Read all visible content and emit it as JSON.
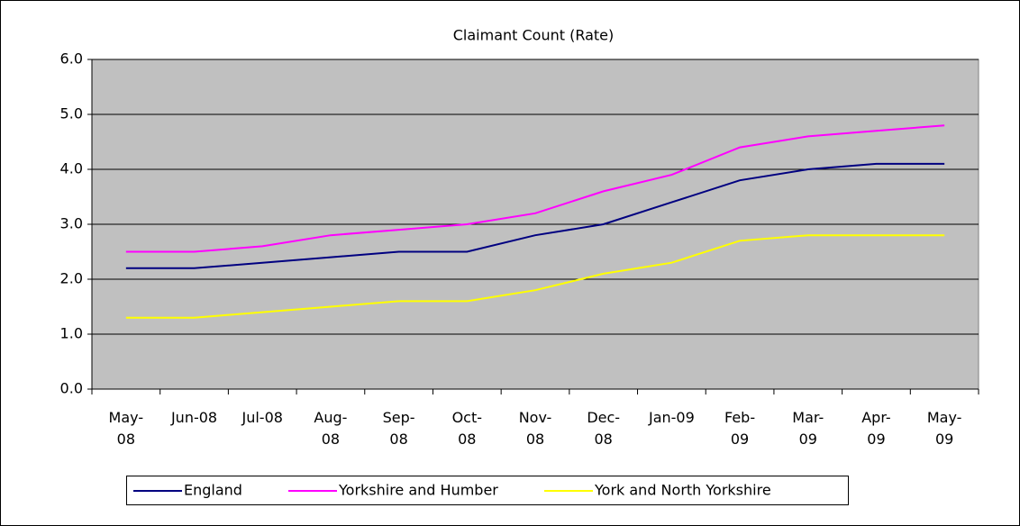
{
  "chart_data": {
    "type": "line",
    "title": "Claimant Count (Rate)",
    "categories": [
      "May-08",
      "Jun-08",
      "Jul-08",
      "Aug-08",
      "Sep-08",
      "Oct-08",
      "Nov-08",
      "Dec-08",
      "Jan-09",
      "Feb-09",
      "Mar-09",
      "Apr-09",
      "May-09"
    ],
    "series": [
      {
        "name": "England",
        "color": "#000080",
        "values": [
          2.2,
          2.2,
          2.3,
          2.4,
          2.5,
          2.5,
          2.8,
          3.0,
          3.4,
          3.8,
          4.0,
          4.1,
          4.1
        ]
      },
      {
        "name": "Yorkshire and Humber",
        "color": "#ff00ff",
        "values": [
          2.5,
          2.5,
          2.6,
          2.8,
          2.9,
          3.0,
          3.2,
          3.6,
          3.9,
          4.4,
          4.6,
          4.7,
          4.8
        ]
      },
      {
        "name": "York and North Yorkshire",
        "color": "#ffff00",
        "values": [
          1.3,
          1.3,
          1.4,
          1.5,
          1.6,
          1.6,
          1.8,
          2.1,
          2.3,
          2.7,
          2.8,
          2.8,
          2.8
        ]
      }
    ],
    "ylim": [
      0,
      6
    ],
    "yticks": [
      {
        "value": 0,
        "label": "0.0"
      },
      {
        "value": 1,
        "label": "1.0"
      },
      {
        "value": 2,
        "label": "2.0"
      },
      {
        "value": 3,
        "label": "3.0"
      },
      {
        "value": 4,
        "label": "4.0"
      },
      {
        "value": 5,
        "label": "5.0"
      },
      {
        "value": 6,
        "label": "6.0"
      }
    ],
    "grid": true,
    "plot_background": "#c0c0c0",
    "legend": "bottom"
  }
}
